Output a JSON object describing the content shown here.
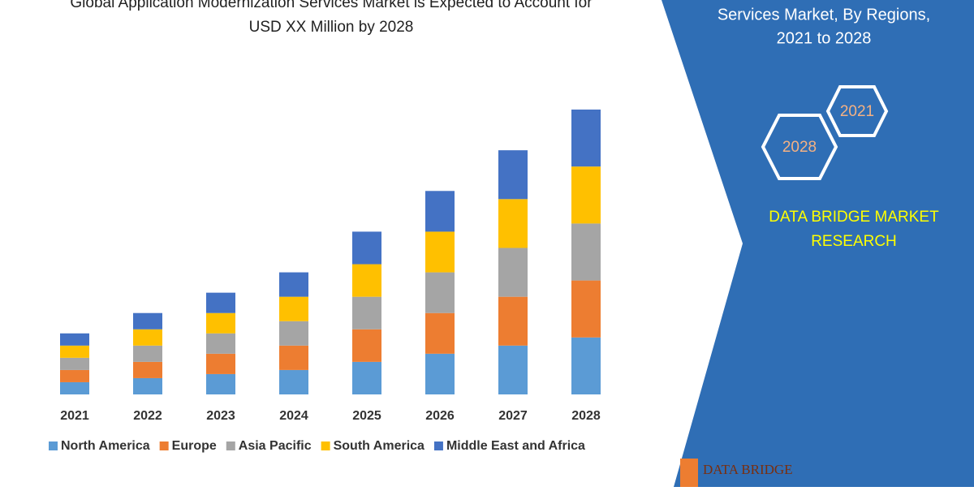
{
  "chart_data": {
    "type": "bar",
    "stacked": true,
    "title": [
      "Global Application Modernization Services Market is Expected to Account for",
      "USD XX Million by 2028"
    ],
    "categories": [
      "2021",
      "2022",
      "2023",
      "2024",
      "2025",
      "2026",
      "2027",
      "2028"
    ],
    "series": [
      {
        "name": "North America",
        "color": "#5b9bd5",
        "values": [
          15,
          20,
          25,
          30,
          40,
          50,
          60,
          70
        ]
      },
      {
        "name": "Europe",
        "color": "#ed7d31",
        "values": [
          15,
          20,
          25,
          30,
          40,
          50,
          60,
          70
        ]
      },
      {
        "name": "Asia Pacific",
        "color": "#a5a5a5",
        "values": [
          15,
          20,
          25,
          30,
          40,
          50,
          60,
          70
        ]
      },
      {
        "name": "South America",
        "color": "#ffc000",
        "values": [
          15,
          20,
          25,
          30,
          40,
          50,
          60,
          70
        ]
      },
      {
        "name": "Middle East and Africa",
        "color": "#4472c4",
        "values": [
          15,
          20,
          25,
          30,
          40,
          50,
          60,
          70
        ]
      }
    ]
  },
  "panel": {
    "title_lines": [
      "Services  Market, By Regions,",
      "2021 to 2028"
    ],
    "hexagons": [
      "2021",
      "2028"
    ],
    "brand_lines": [
      "DATA BRIDGE MARKET",
      "RESEARCH"
    ],
    "logo": "DATA BRIDGE"
  }
}
